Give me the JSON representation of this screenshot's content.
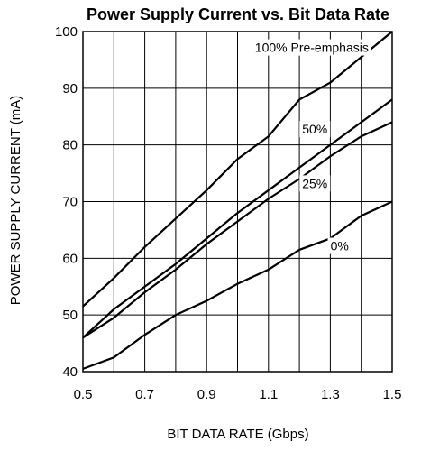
{
  "chart_data": {
    "type": "line",
    "title": "Power Supply Current vs. Bit Data Rate",
    "xlabel": "BIT DATA RATE (Gbps)",
    "ylabel": "POWER SUPPLY CURRENT (mA)",
    "xlim": [
      0.5,
      1.5
    ],
    "ylim": [
      40,
      100
    ],
    "xticks": [
      "0.5",
      "0.7",
      "0.9",
      "1.1",
      "1.3",
      "1.5"
    ],
    "yticks": [
      "40",
      "50",
      "60",
      "70",
      "80",
      "90",
      "100"
    ],
    "grid": true,
    "series": [
      {
        "name": "100% Pre-emphasis",
        "x": [
          0.5,
          0.6,
          0.7,
          0.8,
          0.9,
          1.0,
          1.1,
          1.2,
          1.3,
          1.4,
          1.5
        ],
        "values": [
          51.5,
          56.5,
          62.0,
          67.0,
          72.0,
          77.5,
          81.5,
          88.0,
          91.0,
          95.5,
          100.0
        ]
      },
      {
        "name": "50%",
        "x": [
          0.5,
          0.6,
          0.7,
          0.8,
          0.9,
          1.0,
          1.1,
          1.2,
          1.3,
          1.4,
          1.5
        ],
        "values": [
          46.0,
          51.0,
          55.0,
          59.0,
          63.5,
          68.0,
          72.0,
          76.0,
          80.0,
          84.0,
          88.0
        ]
      },
      {
        "name": "25%",
        "x": [
          0.5,
          0.6,
          0.7,
          0.8,
          0.9,
          1.0,
          1.1,
          1.2,
          1.3,
          1.4,
          1.5
        ],
        "values": [
          46.0,
          49.5,
          54.0,
          58.0,
          62.5,
          66.5,
          70.5,
          74.0,
          78.0,
          81.5,
          84.0
        ]
      },
      {
        "name": "0%",
        "x": [
          0.5,
          0.6,
          0.7,
          0.8,
          0.9,
          1.0,
          1.1,
          1.2,
          1.3,
          1.4,
          1.5
        ],
        "values": [
          40.5,
          42.5,
          46.5,
          50.0,
          52.5,
          55.5,
          58.0,
          61.5,
          63.5,
          67.5,
          70.0
        ]
      }
    ],
    "annotations": [
      {
        "series": "100% Pre-emphasis",
        "x": 1.24,
        "y": 97.2
      },
      {
        "series": "50%",
        "x": 1.25,
        "y": 82.8
      },
      {
        "series": "25%",
        "x": 1.25,
        "y": 73.2
      },
      {
        "series": "0%",
        "x": 1.33,
        "y": 62.2
      }
    ]
  }
}
